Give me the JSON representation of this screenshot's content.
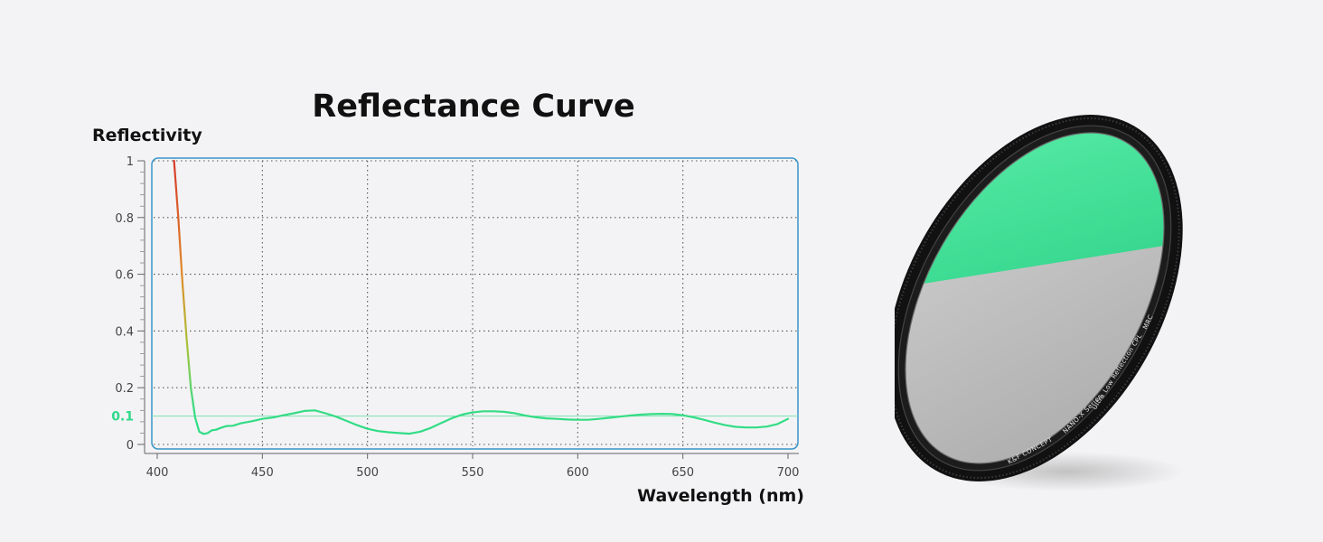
{
  "chart_data": {
    "type": "line",
    "title": "Reflectance Curve",
    "ylabel": "Reflectivity",
    "xlabel": "Wavelength (nm)",
    "xlim": [
      400,
      700
    ],
    "ylim": [
      0,
      1
    ],
    "x_ticks": [
      400,
      450,
      500,
      550,
      600,
      650,
      700
    ],
    "y_ticks": [
      0,
      0.2,
      0.4,
      0.6,
      0.8,
      1
    ],
    "y_tick_labels": [
      "0",
      "0.2",
      "0.4",
      "0.6",
      "0.8",
      "1"
    ],
    "grid": true,
    "reference_line": {
      "y": 0.1,
      "label": "0.1"
    },
    "series": [
      {
        "name": "Reflectivity",
        "x": [
          408,
          410,
          412,
          414,
          416,
          418,
          420,
          422,
          424,
          426,
          428,
          430,
          433,
          436,
          440,
          445,
          450,
          455,
          460,
          465,
          470,
          475,
          480,
          485,
          490,
          495,
          500,
          505,
          510,
          515,
          520,
          525,
          530,
          535,
          540,
          545,
          550,
          555,
          560,
          565,
          570,
          575,
          580,
          585,
          590,
          595,
          600,
          605,
          610,
          615,
          620,
          625,
          630,
          635,
          640,
          645,
          650,
          655,
          660,
          665,
          670,
          675,
          680,
          685,
          690,
          695,
          700
        ],
        "values": [
          1.0,
          0.8,
          0.57,
          0.37,
          0.2,
          0.095,
          0.045,
          0.037,
          0.04,
          0.05,
          0.052,
          0.058,
          0.065,
          0.066,
          0.075,
          0.082,
          0.09,
          0.095,
          0.103,
          0.11,
          0.118,
          0.12,
          0.11,
          0.098,
          0.083,
          0.068,
          0.055,
          0.047,
          0.043,
          0.04,
          0.038,
          0.045,
          0.058,
          0.075,
          0.092,
          0.105,
          0.113,
          0.117,
          0.117,
          0.115,
          0.11,
          0.102,
          0.096,
          0.092,
          0.09,
          0.088,
          0.087,
          0.087,
          0.09,
          0.094,
          0.098,
          0.102,
          0.105,
          0.107,
          0.108,
          0.107,
          0.103,
          0.096,
          0.087,
          0.077,
          0.068,
          0.062,
          0.06,
          0.06,
          0.063,
          0.072,
          0.09
        ]
      }
    ]
  },
  "product": {
    "brand_text": "K&F CONCEPT",
    "series_text": "NANO-X Series",
    "model_text": "Ultra Low Reflection CPL",
    "suffix_text": "MRC",
    "colors": {
      "coating": "#2ee68f",
      "glass": "#bdbdbd",
      "frame": "#151515"
    }
  },
  "colors": {
    "background": "#f3f3f5",
    "curve_low": "#2fdd86",
    "curve_high": "#d63a2a",
    "plot_border": "#3b95c8",
    "reference_line": "#7de3b3",
    "highlight_label": "#2fd98a"
  }
}
